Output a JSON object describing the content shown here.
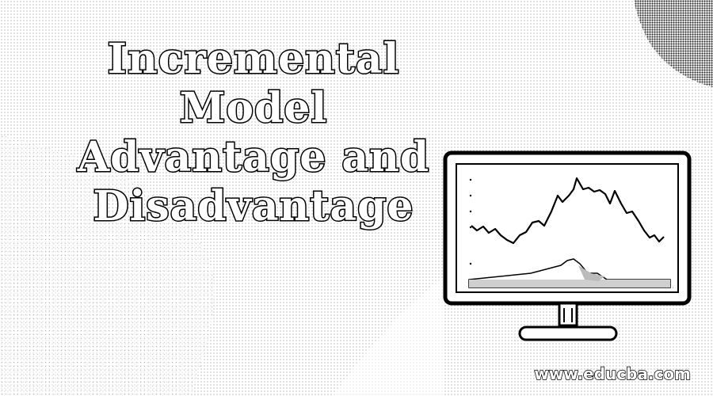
{
  "title": {
    "line1": "Incremental Model",
    "line2": "Advantage and",
    "line3": "Disadvantage"
  },
  "watermark": "www.educba.com",
  "colors": {
    "background": "#ffffff",
    "ink": "#000000",
    "dot_pattern": "#b8b8b8",
    "corner_shape": "#444444"
  },
  "illustration": {
    "icon": "monitor-with-line-chart-icon"
  }
}
